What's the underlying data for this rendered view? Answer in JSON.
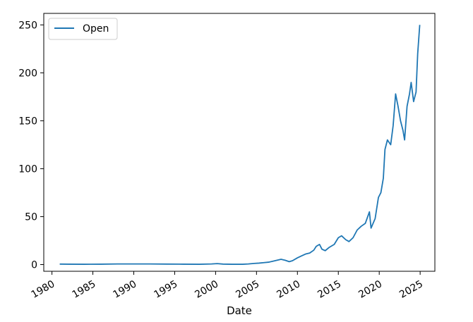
{
  "chart_data": {
    "type": "line",
    "title": "",
    "xlabel": "Date",
    "ylabel": "",
    "xlim": [
      1979.0,
      2026.8
    ],
    "ylim": [
      -7,
      262
    ],
    "xticks": [
      1980,
      1985,
      1990,
      1995,
      2000,
      2005,
      2010,
      2015,
      2020,
      2025
    ],
    "yticks": [
      0,
      50,
      100,
      150,
      200,
      250
    ],
    "legend": {
      "position": "top-left",
      "entries": [
        "Open"
      ]
    },
    "grid": false,
    "colors": {
      "series": "#1f77b4"
    },
    "series": [
      {
        "name": "Open",
        "x": [
          1980.95,
          1982,
          1984,
          1986,
          1988,
          1990,
          1992,
          1994,
          1996,
          1998,
          1999.5,
          2000.2,
          2000.9,
          2002,
          2003.3,
          2004,
          2004.7,
          2005.3,
          2005.9,
          2006.5,
          2007,
          2007.5,
          2008.0,
          2008.5,
          2009.0,
          2009.4,
          2010.0,
          2010.5,
          2011.0,
          2011.5,
          2012.0,
          2012.3,
          2012.7,
          2013.0,
          2013.4,
          2013.9,
          2014.5,
          2015.0,
          2015.4,
          2015.9,
          2016.3,
          2016.8,
          2017.3,
          2017.8,
          2018.3,
          2018.8,
          2019.0,
          2019.5,
          2019.9,
          2020.2,
          2020.5,
          2020.7,
          2021.0,
          2021.4,
          2021.7,
          2022.0,
          2022.3,
          2022.6,
          2022.9,
          2023.1,
          2023.4,
          2023.7,
          2023.9,
          2024.2,
          2024.5,
          2024.7,
          2024.95
        ],
        "y": [
          0.5,
          0.4,
          0.3,
          0.4,
          0.6,
          0.6,
          0.6,
          0.5,
          0.4,
          0.3,
          0.6,
          1.0,
          0.5,
          0.3,
          0.3,
          0.6,
          1.2,
          1.5,
          2.0,
          2.5,
          3.5,
          4.5,
          5.5,
          4.5,
          3.0,
          4.0,
          7.0,
          9.0,
          11.0,
          12.0,
          15.0,
          19.0,
          21.0,
          16.0,
          14.5,
          18.0,
          21.0,
          28.0,
          30.0,
          26.0,
          24.0,
          28.0,
          36.0,
          40.0,
          43.0,
          55.0,
          38.0,
          48.0,
          70.0,
          75.0,
          90.0,
          120.0,
          130.0,
          125.0,
          145.0,
          178.0,
          165.0,
          150.0,
          140.0,
          130.0,
          165.0,
          178.0,
          190.0,
          170.0,
          180.0,
          220.0,
          250.0
        ]
      }
    ]
  }
}
